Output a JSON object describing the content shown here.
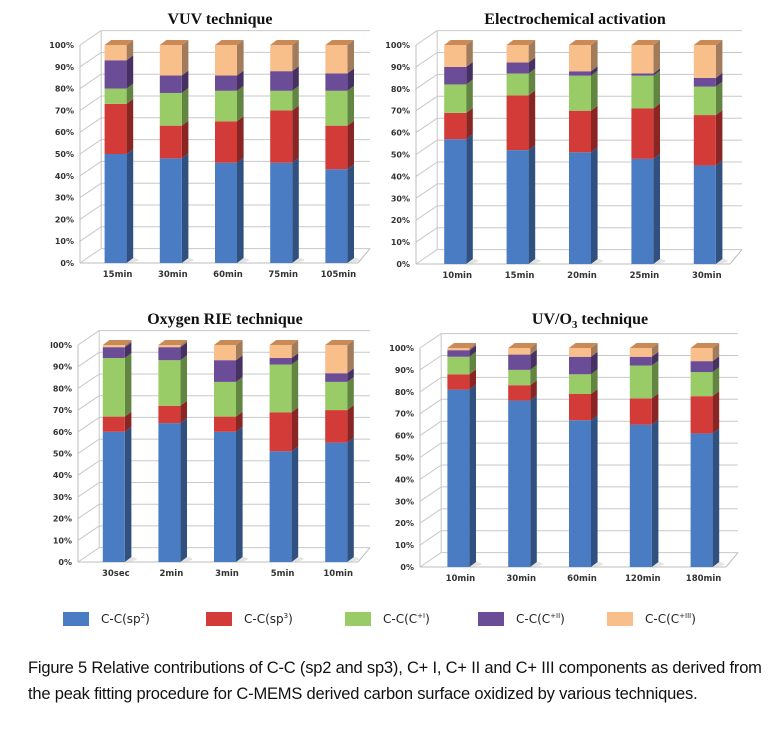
{
  "figure": {
    "caption": "Figure 5 Relative contributions of C-C (sp2 and sp3), C+ I, C+ II and C+ III components as derived from the peak fitting procedure for C-MEMS derived carbon surface oxidized by various techniques."
  },
  "legend": [
    {
      "label_main": "C-C(sp",
      "label_sup": "2",
      "label_end": ")",
      "color": "#4a7cc4"
    },
    {
      "label_main": "C-C(sp",
      "label_sup": "3",
      "label_end": ")",
      "color": "#d23b38"
    },
    {
      "label_main": "C-C(C",
      "label_sup": "+I",
      "label_end": ")",
      "color": "#99cc66"
    },
    {
      "label_main": "C-C(C",
      "label_sup": "+II",
      "label_end": ")",
      "color": "#6b4c97"
    },
    {
      "label_main": "C-C(C",
      "label_sup": "+III",
      "label_end": ")",
      "color": "#f9bf8b"
    }
  ],
  "chart_data": [
    {
      "type": "bar",
      "stacked": "percent",
      "style": "3d-column",
      "title": "VUV technique",
      "title_sub": "",
      "title_end": "",
      "xlabel": "",
      "ylabel": "",
      "ylim": [
        0,
        100
      ],
      "yticks": [
        "0%",
        "10%",
        "20%",
        "30%",
        "40%",
        "50%",
        "60%",
        "70%",
        "80%",
        "90%",
        "100%"
      ],
      "grid": true,
      "legend": "bottom",
      "categories": [
        "15min",
        "30min",
        "60min",
        "75min",
        "105min"
      ],
      "series": [
        {
          "name": "C-C(sp2)",
          "values": [
            50,
            48,
            46,
            46,
            43
          ]
        },
        {
          "name": "C-C(sp3)",
          "values": [
            23,
            15,
            19,
            24,
            20
          ]
        },
        {
          "name": "C-C(C+I)",
          "values": [
            7,
            15,
            14,
            9,
            16
          ]
        },
        {
          "name": "C-C(C+II)",
          "values": [
            13,
            8,
            7,
            9,
            8
          ]
        },
        {
          "name": "C-C(C+III)",
          "values": [
            7,
            14,
            14,
            12,
            13
          ]
        }
      ]
    },
    {
      "type": "bar",
      "stacked": "percent",
      "style": "3d-column",
      "title": "Electrochemical activation",
      "title_sub": "",
      "title_end": "",
      "xlabel": "",
      "ylabel": "",
      "ylim": [
        0,
        100
      ],
      "yticks": [
        "0%",
        "10%",
        "20%",
        "30%",
        "40%",
        "50%",
        "60%",
        "70%",
        "80%",
        "90%",
        "100%"
      ],
      "grid": true,
      "legend": "bottom",
      "categories": [
        "10min",
        "15min",
        "20min",
        "25min",
        "30min"
      ],
      "series": [
        {
          "name": "C-C(sp2)",
          "values": [
            57,
            52,
            51,
            48,
            45
          ]
        },
        {
          "name": "C-C(sp3)",
          "values": [
            12,
            25,
            19,
            23,
            23
          ]
        },
        {
          "name": "C-C(C+I)",
          "values": [
            13,
            10,
            16,
            15,
            13
          ]
        },
        {
          "name": "C-C(C+II)",
          "values": [
            8,
            5,
            2,
            1,
            4
          ]
        },
        {
          "name": "C-C(C+III)",
          "values": [
            10,
            8,
            12,
            13,
            15
          ]
        }
      ]
    },
    {
      "type": "bar",
      "stacked": "percent",
      "style": "3d-column",
      "title": "Oxygen RIE technique",
      "title_sub": "",
      "title_end": "",
      "xlabel": "",
      "ylabel": "",
      "ylim": [
        0,
        100
      ],
      "yticks": [
        "0%",
        "10%",
        "20%",
        "30%",
        "40%",
        "50%",
        "60%",
        "70%",
        "80%",
        "90%",
        "l00%"
      ],
      "grid": true,
      "legend": "bottom",
      "categories": [
        "30sec",
        "2min",
        "3min",
        "5min",
        "10min"
      ],
      "series": [
        {
          "name": "C-C(sp2)",
          "values": [
            60,
            64,
            60,
            51,
            55
          ]
        },
        {
          "name": "C-C(sp3)",
          "values": [
            7,
            8,
            7,
            18,
            15
          ]
        },
        {
          "name": "C-C(C+I)",
          "values": [
            27,
            21,
            16,
            22,
            13
          ]
        },
        {
          "name": "C-C(C+II)",
          "values": [
            5,
            6,
            10,
            3,
            4
          ]
        },
        {
          "name": "C-C(C+III)",
          "values": [
            1,
            1,
            7,
            6,
            13
          ]
        }
      ]
    },
    {
      "type": "bar",
      "stacked": "percent",
      "style": "3d-column",
      "title": "UV/O",
      "title_sub": "3",
      "title_end": " technique",
      "xlabel": "",
      "ylabel": "",
      "ylim": [
        0,
        100
      ],
      "yticks": [
        "0%",
        "10%",
        "20%",
        "30%",
        "40%",
        "50%",
        "60%",
        "70%",
        "80%",
        "90%",
        "100%"
      ],
      "grid": true,
      "legend": "bottom",
      "categories": [
        "10min",
        "30min",
        "60min",
        "120min",
        "180min"
      ],
      "series": [
        {
          "name": "C-C(sp2)",
          "values": [
            81,
            76,
            67,
            65,
            61
          ]
        },
        {
          "name": "C-C(sp3)",
          "values": [
            7,
            7,
            12,
            12,
            17
          ]
        },
        {
          "name": "C-C(C+I)",
          "values": [
            8,
            7,
            9,
            15,
            11
          ]
        },
        {
          "name": "C-C(C+II)",
          "values": [
            3,
            7,
            8,
            4,
            5
          ]
        },
        {
          "name": "C-C(C+III)",
          "values": [
            1,
            3,
            4,
            4,
            6
          ]
        }
      ]
    }
  ]
}
